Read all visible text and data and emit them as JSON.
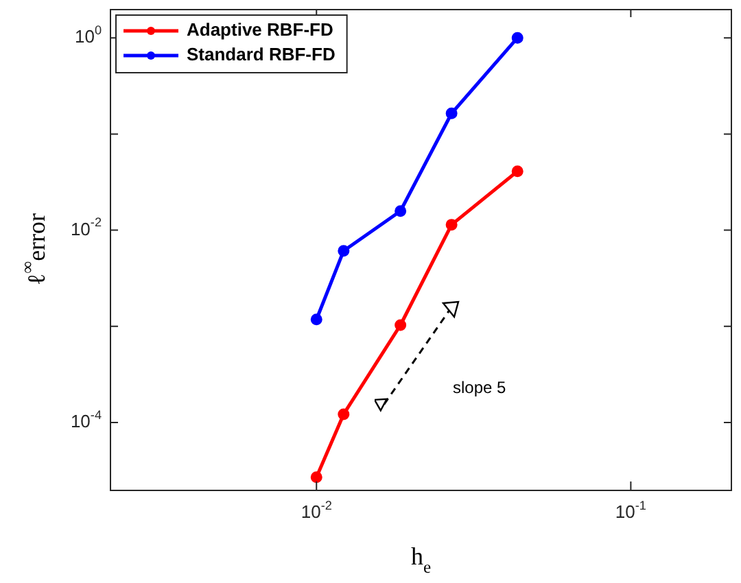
{
  "chart_data": {
    "type": "line",
    "xlabel": "h$_{e}$",
    "ylabel": "ℓ$^{∞}$error",
    "log": "xy",
    "marker": "circle",
    "line_style": "solid",
    "legend": "top left",
    "grid": false,
    "xlim": [
      0.0022,
      0.21
    ],
    "ylim": [
      2e-05,
      2
    ],
    "xticks": [
      {
        "value": 0.01,
        "label": "10$^{-2}$"
      },
      {
        "value": 0.1,
        "label": "10$^{-1}$"
      }
    ],
    "yticks": [
      {
        "value": 0.0001,
        "label": "10$^{-4}$"
      },
      {
        "value": 0.001,
        "label": null
      },
      {
        "value": 0.01,
        "label": "10$^{-2}$"
      },
      {
        "value": 0.1,
        "label": null
      },
      {
        "value": 1,
        "label": "10$^{0}$"
      }
    ],
    "x": [
      0.01,
      0.0122,
      0.0185,
      0.0269,
      0.0436
    ],
    "series": [
      {
        "name": "Adaptive RBF-FD",
        "color": "#ff0000",
        "values": [
          2.7e-05,
          0.000122,
          0.00103,
          0.0114,
          0.041
        ]
      },
      {
        "name": "Standard RBF-FD",
        "color": "#0000ff",
        "values": [
          0.00118,
          0.0061,
          0.0158,
          0.164,
          1.0
        ]
      }
    ],
    "annotations": [
      "slope 5"
    ]
  }
}
